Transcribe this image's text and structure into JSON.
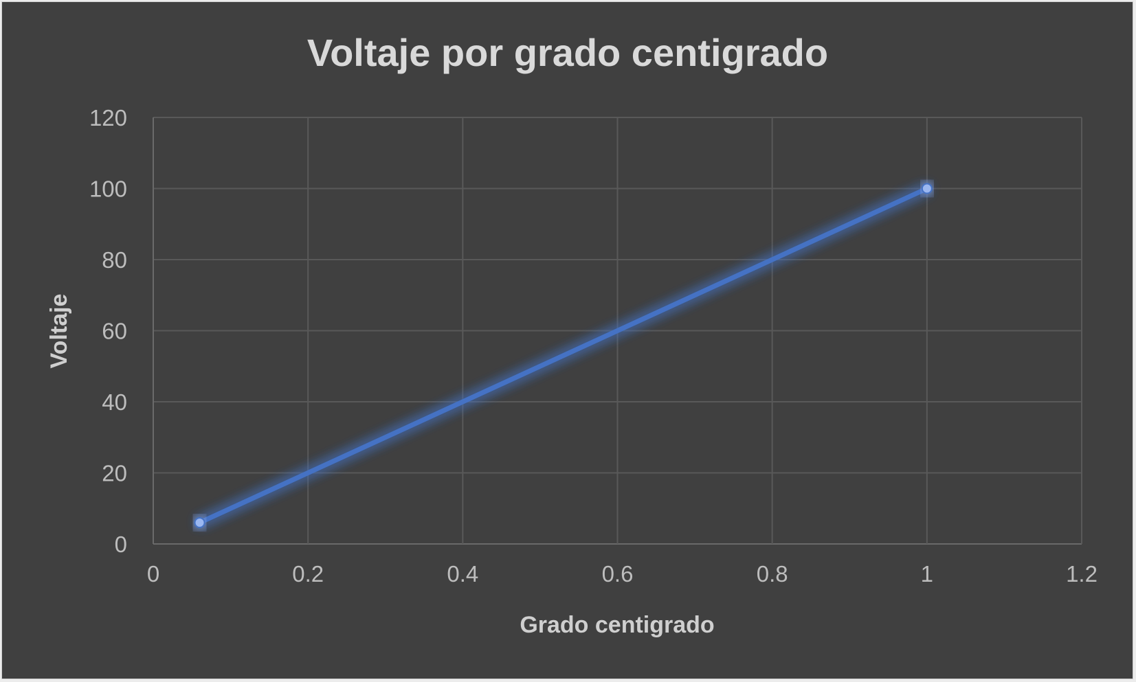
{
  "chart_data": {
    "type": "scatter",
    "title": "Voltaje por grado centigrado",
    "xlabel": "Grado centigrado",
    "ylabel": "Voltaje",
    "xlim": [
      0,
      1.2
    ],
    "ylim": [
      0,
      120
    ],
    "x_ticks": [
      "0",
      "0.2",
      "0.4",
      "0.6",
      "0.8",
      "1",
      "1.2"
    ],
    "y_ticks": [
      "0",
      "20",
      "40",
      "60",
      "80",
      "100",
      "120"
    ],
    "grid": true,
    "series": [
      {
        "name": "Voltaje",
        "x": [
          0.06,
          1
        ],
        "y": [
          6,
          100
        ],
        "color": "#4472c4",
        "marker_color": "#9bb7f0",
        "lines": true
      }
    ]
  },
  "colors": {
    "background": "#404040",
    "text": "#d9d9d9",
    "grid": "#595959"
  }
}
